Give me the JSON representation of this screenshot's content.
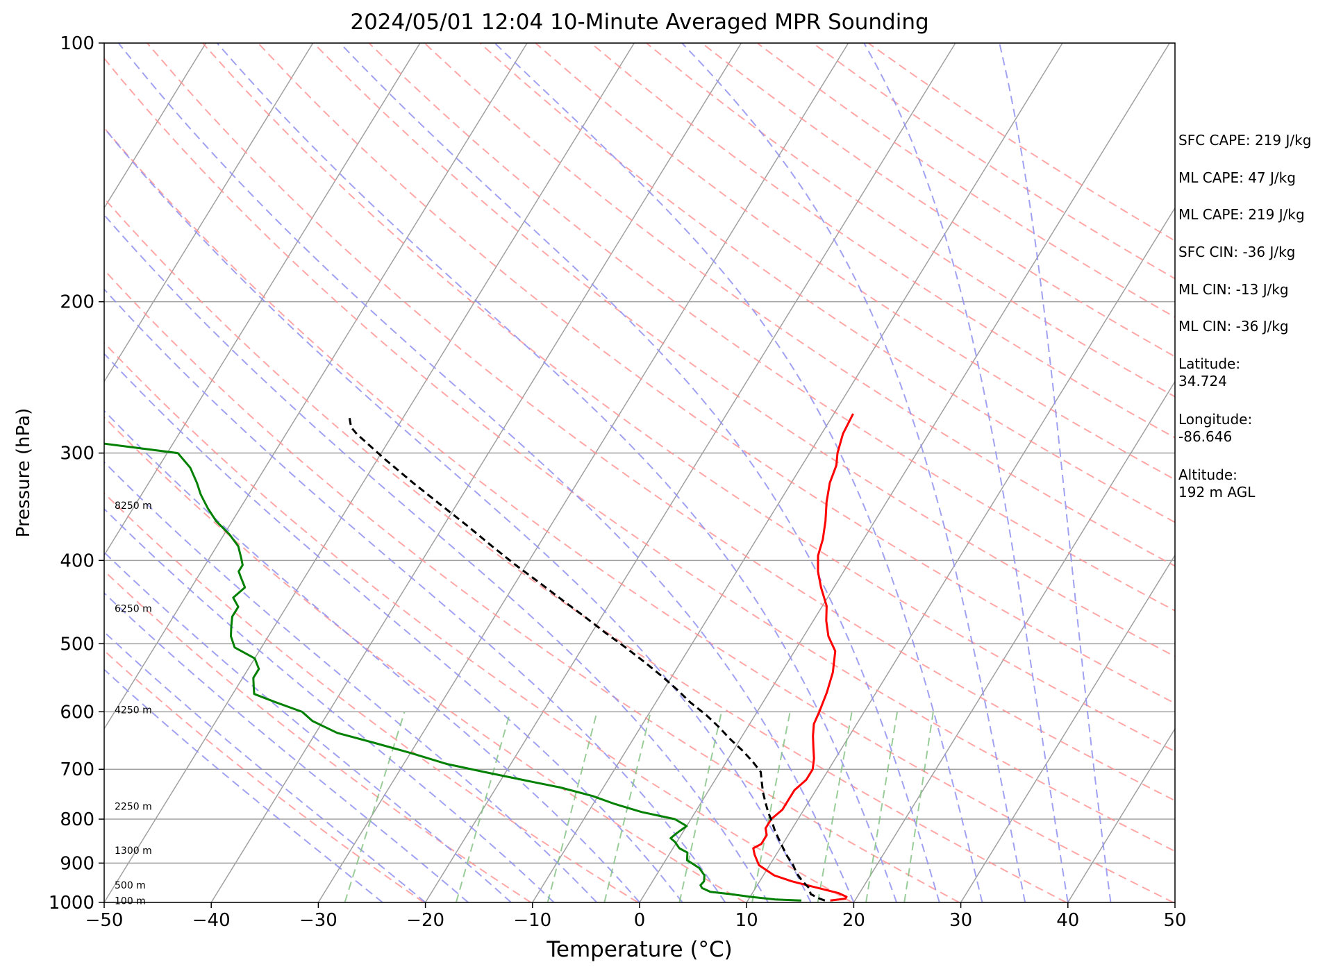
{
  "chart_data": {
    "type": "line",
    "subtype": "skew-t log-p sounding",
    "title": "2024/05/01 12:04 10-Minute Averaged MPR Sounding",
    "xlabel": "Temperature (°C)",
    "ylabel": "Pressure (hPa)",
    "xlim": [
      -50,
      50
    ],
    "ylim": [
      1000,
      100
    ],
    "y_scale": "log",
    "x_ticks": [
      -50,
      -40,
      -30,
      -20,
      -10,
      0,
      10,
      20,
      30,
      40,
      50
    ],
    "x_tick_labels": [
      "−50",
      "−40",
      "−30",
      "−20",
      "−10",
      "0",
      "10",
      "20",
      "30",
      "40",
      "50"
    ],
    "y_ticks": [
      100,
      200,
      300,
      400,
      500,
      600,
      700,
      800,
      900,
      1000
    ],
    "y_tick_labels": [
      "100",
      "200",
      "300",
      "400",
      "500",
      "600",
      "700",
      "800",
      "900",
      "1000"
    ],
    "grid": true,
    "height_labels": [
      {
        "text": "8250 m",
        "p": 345
      },
      {
        "text": "6250 m",
        "p": 455
      },
      {
        "text": "4250 m",
        "p": 597
      },
      {
        "text": "2250 m",
        "p": 773
      },
      {
        "text": "1300 m",
        "p": 870
      },
      {
        "text": "500 m",
        "p": 955
      },
      {
        "text": "100 m",
        "p": 995
      }
    ],
    "series": [
      {
        "color": "#ff0000",
        "style": "solid",
        "points": [
          [
            17.7,
            995
          ],
          [
            19.0,
            990
          ],
          [
            19.0,
            985
          ],
          [
            18.0,
            975
          ],
          [
            15.5,
            960
          ],
          [
            13.0,
            945
          ],
          [
            11.0,
            930
          ],
          [
            9.0,
            905
          ],
          [
            8.0,
            880
          ],
          [
            7.5,
            865
          ],
          [
            8.0,
            855
          ],
          [
            8.0,
            835
          ],
          [
            7.5,
            820
          ],
          [
            7.5,
            800
          ],
          [
            8.0,
            780
          ],
          [
            8.0,
            760
          ],
          [
            8.0,
            740
          ],
          [
            8.5,
            720
          ],
          [
            8.5,
            700
          ],
          [
            8.0,
            680
          ],
          [
            7.3,
            660
          ],
          [
            6.6,
            640
          ],
          [
            6.0,
            620
          ],
          [
            5.8,
            600
          ],
          [
            5.4,
            570
          ],
          [
            4.8,
            540
          ],
          [
            3.8,
            510
          ],
          [
            2.3,
            490
          ],
          [
            1.2,
            470
          ],
          [
            0.4,
            452
          ],
          [
            -1.2,
            430
          ],
          [
            -2.4,
            412
          ],
          [
            -3.3,
            395
          ],
          [
            -3.8,
            378
          ],
          [
            -4.6,
            360
          ],
          [
            -5.6,
            342
          ],
          [
            -6.4,
            325
          ],
          [
            -6.8,
            310
          ],
          [
            -7.4,
            300
          ],
          [
            -8.0,
            285
          ],
          [
            -8.2,
            270
          ]
        ]
      },
      {
        "color": "#008000",
        "style": "solid",
        "points": [
          [
            15.0,
            995
          ],
          [
            12.5,
            992
          ],
          [
            10.0,
            985
          ],
          [
            8.0,
            978
          ],
          [
            6.0,
            972
          ],
          [
            5.0,
            962
          ],
          [
            4.7,
            955
          ],
          [
            4.8,
            945
          ],
          [
            4.5,
            930
          ],
          [
            3.6,
            912
          ],
          [
            2.6,
            900
          ],
          [
            2.0,
            893
          ],
          [
            1.6,
            875
          ],
          [
            0.6,
            865
          ],
          [
            -0.2,
            850
          ],
          [
            -0.8,
            842
          ],
          [
            -0.5,
            830
          ],
          [
            0.0,
            815
          ],
          [
            -1.5,
            800
          ],
          [
            -5.0,
            785
          ],
          [
            -8.0,
            768
          ],
          [
            -10.5,
            752
          ],
          [
            -14.0,
            735
          ],
          [
            -18.0,
            720
          ],
          [
            -22.0,
            705
          ],
          [
            -26.0,
            690
          ],
          [
            -30.0,
            670
          ],
          [
            -34.0,
            652
          ],
          [
            -38.0,
            635
          ],
          [
            -41.0,
            615
          ],
          [
            -42.5,
            600
          ],
          [
            -45.5,
            585
          ],
          [
            -48.0,
            572
          ],
          [
            -48.5,
            560
          ],
          [
            -49.0,
            548
          ],
          [
            -49.0,
            535
          ],
          [
            -50.0,
            520
          ],
          [
            -52.5,
            505
          ],
          [
            -53.5,
            490
          ],
          [
            -54.0,
            478
          ],
          [
            -54.5,
            465
          ],
          [
            -54.5,
            453
          ],
          [
            -55.5,
            442
          ],
          [
            -55.0,
            430
          ],
          [
            -56.0,
            418
          ],
          [
            -56.5,
            412
          ],
          [
            -56.5,
            405
          ],
          [
            -57.0,
            398
          ],
          [
            -58.0,
            385
          ],
          [
            -59.5,
            373
          ],
          [
            -61.5,
            360
          ],
          [
            -63.0,
            348
          ],
          [
            -64.5,
            335
          ],
          [
            -65.5,
            325
          ],
          [
            -67.0,
            312
          ],
          [
            -69.0,
            300
          ],
          [
            -81.0,
            288
          ]
        ]
      },
      {
        "color": "#000000",
        "style": "dashed",
        "points": [
          [
            17.2,
            995
          ],
          [
            16.6,
            990
          ],
          [
            15.5,
            978
          ],
          [
            15.0,
            962
          ],
          [
            14.0,
            945
          ],
          [
            13.0,
            925
          ],
          [
            12.2,
            905
          ],
          [
            11.2,
            885
          ],
          [
            10.3,
            865
          ],
          [
            9.4,
            845
          ],
          [
            8.5,
            825
          ],
          [
            7.7,
            805
          ],
          [
            6.8,
            785
          ],
          [
            6.0,
            765
          ],
          [
            5.2,
            745
          ],
          [
            4.5,
            725
          ],
          [
            3.8,
            705
          ],
          [
            2.4,
            685
          ],
          [
            0.8,
            665
          ],
          [
            -1.0,
            645
          ],
          [
            -2.7,
            625
          ],
          [
            -4.6,
            605
          ],
          [
            -6.8,
            585
          ],
          [
            -8.8,
            565
          ],
          [
            -11.0,
            545
          ],
          [
            -13.4,
            525
          ],
          [
            -16.0,
            505
          ],
          [
            -18.8,
            485
          ],
          [
            -21.6,
            465
          ],
          [
            -24.6,
            445
          ],
          [
            -27.7,
            425
          ],
          [
            -31.0,
            405
          ],
          [
            -34.3,
            385
          ],
          [
            -37.7,
            365
          ],
          [
            -41.4,
            345
          ],
          [
            -45.3,
            325
          ],
          [
            -49.3,
            305
          ],
          [
            -53.4,
            285
          ],
          [
            -54.3,
            280
          ],
          [
            -55.0,
            273
          ]
        ]
      }
    ],
    "background_lines": {
      "isotherms": {
        "color": "#a0a0a0",
        "style": "solid"
      },
      "dry_adiabats": {
        "color": "#ff9090",
        "style": "dashed"
      },
      "moist_adiabats": {
        "color": "#9090f0",
        "style": "dashed"
      },
      "mixing_ratio": {
        "color": "#80c080",
        "style": "dashed"
      }
    }
  },
  "info": {
    "sfc_cape": "SFC CAPE: 219 J/kg",
    "ml_cape_1": "ML CAPE: 47 J/kg",
    "ml_cape_2": "ML CAPE: 219 J/kg",
    "sfc_cin": "SFC CIN: -36 J/kg",
    "ml_cin_1": "ML CIN: -13 J/kg",
    "ml_cin_2": "ML CIN: -36 J/kg",
    "latitude": [
      "Latitude:",
      "34.724"
    ],
    "longitude": [
      "Longitude:",
      "-86.646"
    ],
    "altitude": [
      "Altitude:",
      "192 m AGL"
    ]
  }
}
